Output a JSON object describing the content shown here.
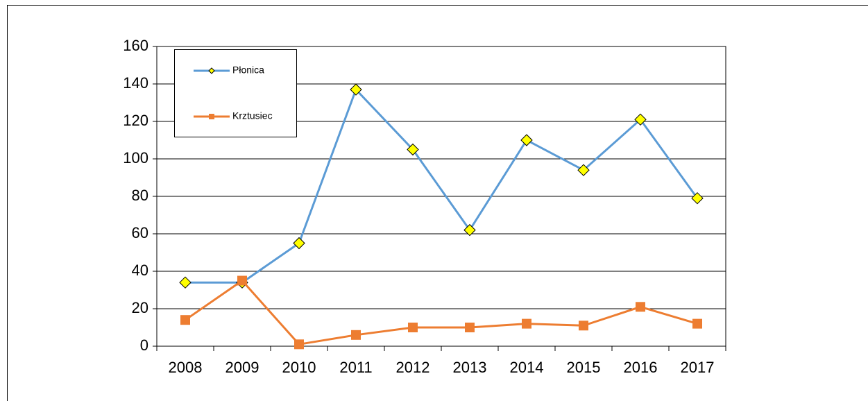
{
  "chart_data": {
    "type": "line",
    "categories": [
      "2008",
      "2009",
      "2010",
      "2011",
      "2012",
      "2013",
      "2014",
      "2015",
      "2016",
      "2017"
    ],
    "series": [
      {
        "name": "Płonica",
        "color": "#5b9bd5",
        "marker": "diamond",
        "marker_color": "#ffff00",
        "values": [
          34,
          34,
          55,
          137,
          105,
          62,
          110,
          94,
          121,
          79
        ]
      },
      {
        "name": "Krztusiec",
        "color": "#ed7d31",
        "marker": "square",
        "marker_color": "#ed7d31",
        "values": [
          14,
          35,
          1,
          6,
          10,
          10,
          12,
          11,
          21,
          12
        ]
      }
    ],
    "ylim": [
      0,
      160
    ],
    "yticks": [
      0,
      20,
      40,
      60,
      80,
      100,
      120,
      140,
      160
    ],
    "grid": true,
    "legend": "top-left"
  }
}
